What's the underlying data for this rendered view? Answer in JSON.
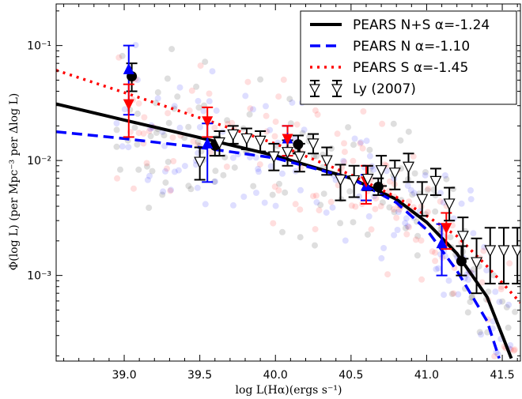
{
  "chart_data": {
    "type": "scatter",
    "xlabel": "log L(Hα)(ergs s⁻¹)",
    "ylabel": "Φ(log L) (per Mpc⁻³ per Δlog L)",
    "xlim": [
      38.55,
      41.62
    ],
    "ylim": [
      0.00018,
      0.23
    ],
    "yscale": "log",
    "xticks": [
      39.0,
      39.5,
      40.0,
      40.5,
      41.0,
      41.5
    ],
    "xtick_labels": [
      "39.0",
      "39.5",
      "40.0",
      "40.5",
      "41.0",
      "41.5"
    ],
    "yticks": [
      0.001,
      0.01,
      0.1
    ],
    "ytick_labels": [
      "10⁻³",
      "10⁻²",
      "10⁻¹"
    ],
    "legend_position": "top-right",
    "legend": [
      {
        "label": "PEARS N+S α=-1.24",
        "style": "solid",
        "color": "#000000",
        "marker": "line"
      },
      {
        "label": "PEARS N α=-1.10",
        "style": "dashed",
        "color": "#0000ff",
        "marker": "line"
      },
      {
        "label": "PEARS S α=-1.45",
        "style": "dotted",
        "color": "#ff0000",
        "marker": "line"
      },
      {
        "label": "Ly (2007)",
        "style": "none",
        "color": "#000000",
        "marker": "open-triangle-down"
      }
    ],
    "curves": [
      {
        "name": "PEARS N+S α=-1.24",
        "alpha": -1.24,
        "color": "#000000",
        "points": [
          [
            38.55,
            0.031
          ],
          [
            39.0,
            0.0225
          ],
          [
            39.5,
            0.0158
          ],
          [
            40.0,
            0.011
          ],
          [
            40.5,
            0.007
          ],
          [
            40.8,
            0.0046
          ],
          [
            41.0,
            0.0029
          ],
          [
            41.2,
            0.00155
          ],
          [
            41.4,
            0.00065
          ],
          [
            41.56,
            0.00019
          ]
        ]
      },
      {
        "name": "PEARS N α=-1.10",
        "alpha": -1.1,
        "color": "#0000ff",
        "points": [
          [
            38.55,
            0.0178
          ],
          [
            39.0,
            0.0155
          ],
          [
            39.5,
            0.013
          ],
          [
            40.0,
            0.0105
          ],
          [
            40.5,
            0.007
          ],
          [
            40.8,
            0.0043
          ],
          [
            41.0,
            0.0025
          ],
          [
            41.2,
            0.0011
          ],
          [
            41.4,
            0.0004
          ],
          [
            41.48,
            0.00019
          ]
        ]
      },
      {
        "name": "PEARS S α=-1.45",
        "alpha": -1.45,
        "color": "#ff0000",
        "points": [
          [
            38.55,
            0.061
          ],
          [
            39.0,
            0.039
          ],
          [
            39.5,
            0.0235
          ],
          [
            40.0,
            0.014
          ],
          [
            40.5,
            0.0075
          ],
          [
            40.8,
            0.0048
          ],
          [
            41.0,
            0.0033
          ],
          [
            41.2,
            0.0022
          ],
          [
            41.4,
            0.0012
          ],
          [
            41.62,
            0.00058
          ]
        ]
      }
    ],
    "series": [
      {
        "name": "PEARS N+S",
        "marker": "filled-circle",
        "color": "#000000",
        "points": [
          {
            "x": 39.05,
            "y": 0.054,
            "lo": 0.04,
            "hi": 0.07
          },
          {
            "x": 39.6,
            "y": 0.0135,
            "lo": 0.011,
            "hi": 0.016
          },
          {
            "x": 40.15,
            "y": 0.0138,
            "lo": 0.0115,
            "hi": 0.0165
          },
          {
            "x": 40.68,
            "y": 0.0059,
            "lo": 0.005,
            "hi": 0.007
          },
          {
            "x": 41.23,
            "y": 0.00133,
            "lo": 0.001,
            "hi": 0.0018
          }
        ]
      },
      {
        "name": "PEARS N",
        "marker": "filled-triangle-up",
        "color": "#0000ff",
        "points": [
          {
            "x": 39.03,
            "y": 0.062,
            "lo": 0.025,
            "hi": 0.1
          },
          {
            "x": 39.55,
            "y": 0.014,
            "lo": 0.0065,
            "hi": 0.021
          },
          {
            "x": 40.08,
            "y": 0.0155,
            "lo": 0.011,
            "hi": 0.02
          },
          {
            "x": 40.6,
            "y": 0.006,
            "lo": 0.0045,
            "hi": 0.0075
          },
          {
            "x": 41.1,
            "y": 0.0019,
            "lo": 0.001,
            "hi": 0.0028
          }
        ]
      },
      {
        "name": "PEARS S",
        "marker": "filled-triangle-down",
        "color": "#ff0000",
        "points": [
          {
            "x": 39.03,
            "y": 0.031,
            "lo": 0.016,
            "hi": 0.046
          },
          {
            "x": 39.55,
            "y": 0.022,
            "lo": 0.016,
            "hi": 0.029
          },
          {
            "x": 40.08,
            "y": 0.0155,
            "lo": 0.011,
            "hi": 0.02
          },
          {
            "x": 40.6,
            "y": 0.0066,
            "lo": 0.0042,
            "hi": 0.009
          },
          {
            "x": 41.13,
            "y": 0.0026,
            "lo": 0.0017,
            "hi": 0.0035
          }
        ]
      },
      {
        "name": "Ly (2007)",
        "marker": "open-triangle-down",
        "color": "#000000",
        "points": [
          {
            "x": 39.5,
            "y": 0.0097,
            "lo": 0.0068,
            "hi": 0.013
          },
          {
            "x": 39.63,
            "y": 0.0143,
            "lo": 0.011,
            "hi": 0.018
          },
          {
            "x": 39.72,
            "y": 0.0168,
            "lo": 0.014,
            "hi": 0.02
          },
          {
            "x": 39.81,
            "y": 0.0155,
            "lo": 0.0125,
            "hi": 0.019
          },
          {
            "x": 39.9,
            "y": 0.0148,
            "lo": 0.012,
            "hi": 0.018
          },
          {
            "x": 39.99,
            "y": 0.0108,
            "lo": 0.0082,
            "hi": 0.014
          },
          {
            "x": 40.08,
            "y": 0.0118,
            "lo": 0.009,
            "hi": 0.015
          },
          {
            "x": 40.16,
            "y": 0.0108,
            "lo": 0.008,
            "hi": 0.014
          },
          {
            "x": 40.25,
            "y": 0.014,
            "lo": 0.0115,
            "hi": 0.017
          },
          {
            "x": 40.34,
            "y": 0.01,
            "lo": 0.0075,
            "hi": 0.013
          },
          {
            "x": 40.43,
            "y": 0.0068,
            "lo": 0.0045,
            "hi": 0.0092
          },
          {
            "x": 40.52,
            "y": 0.0067,
            "lo": 0.0048,
            "hi": 0.009
          },
          {
            "x": 40.61,
            "y": 0.0069,
            "lo": 0.0055,
            "hi": 0.009
          },
          {
            "x": 40.7,
            "y": 0.0082,
            "lo": 0.006,
            "hi": 0.011
          },
          {
            "x": 40.79,
            "y": 0.0078,
            "lo": 0.0056,
            "hi": 0.01
          },
          {
            "x": 40.88,
            "y": 0.0088,
            "lo": 0.0065,
            "hi": 0.0115
          },
          {
            "x": 40.97,
            "y": 0.0046,
            "lo": 0.0033,
            "hi": 0.0065
          },
          {
            "x": 41.06,
            "y": 0.0066,
            "lo": 0.005,
            "hi": 0.0085
          },
          {
            "x": 41.15,
            "y": 0.0042,
            "lo": 0.003,
            "hi": 0.0058
          },
          {
            "x": 41.24,
            "y": 0.0022,
            "lo": 0.0014,
            "hi": 0.0032
          },
          {
            "x": 41.33,
            "y": 0.0013,
            "lo": 0.0007,
            "hi": 0.0021
          },
          {
            "x": 41.42,
            "y": 0.00165,
            "lo": 0.00085,
            "hi": 0.0026
          },
          {
            "x": 41.51,
            "y": 0.00165,
            "lo": 0.00085,
            "hi": 0.0026
          },
          {
            "x": 41.6,
            "y": 0.00165,
            "lo": 0.00085,
            "hi": 0.0026
          }
        ]
      }
    ],
    "background_scatter": {
      "colors": [
        "#0000ff",
        "#ff0000",
        "#000000"
      ],
      "count": 420,
      "opacity": 0.13
    }
  }
}
